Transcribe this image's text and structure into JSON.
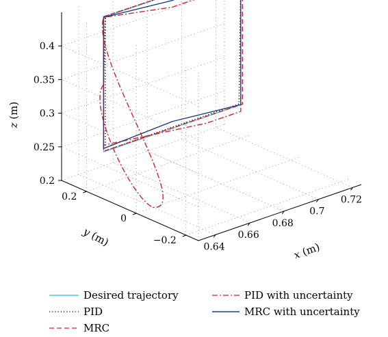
{
  "chart_data": {
    "type": "line",
    "projection": "3d",
    "grid": true,
    "legend_position": "bottom",
    "axes": {
      "x": {
        "label_var": "x",
        "label_unit": "(m)",
        "range": [
          0.63,
          0.725
        ],
        "ticks": [
          0.64,
          0.66,
          0.68,
          0.7,
          0.72
        ],
        "tick_labels": [
          "0.64",
          "0.66",
          "0.68",
          "0.7",
          "0.72"
        ]
      },
      "y": {
        "label_var": "y",
        "label_unit": "(m)",
        "range": [
          -0.25,
          0.3
        ],
        "ticks": [
          -0.2,
          0,
          0.2
        ],
        "tick_labels": [
          "−0.2",
          "0",
          "0.2"
        ]
      },
      "z": {
        "label_var": "z",
        "label_unit": "(m)",
        "range": [
          0.2,
          0.45
        ],
        "ticks": [
          0.2,
          0.25,
          0.3,
          0.35,
          0.4
        ],
        "tick_labels": [
          "0.2",
          "0.25",
          "0.3",
          "0.35",
          "0.4"
        ]
      }
    },
    "series": [
      {
        "name": "Desired trajectory",
        "color": "#4fc3e8",
        "dash": "solid",
        "points": [
          [
            0.64,
            0.2,
            0.35
          ],
          [
            0.64,
            0.2,
            0.45
          ],
          [
            0.72,
            0.2,
            0.45
          ],
          [
            0.72,
            0.2,
            0.25
          ],
          [
            0.64,
            0.2,
            0.25
          ],
          [
            0.64,
            0.2,
            0.45
          ]
        ]
      },
      {
        "name": "PID",
        "color": "#000000",
        "dash": "dotted",
        "points": [
          [
            0.64,
            0.2,
            0.35
          ],
          [
            0.641,
            0.2,
            0.451
          ],
          [
            0.72,
            0.2,
            0.449
          ],
          [
            0.719,
            0.2,
            0.252
          ],
          [
            0.641,
            0.2,
            0.251
          ],
          [
            0.641,
            0.2,
            0.449
          ]
        ]
      },
      {
        "name": "MRC",
        "color": "#d8202a",
        "dash": "dashed",
        "points": [
          [
            0.64,
            0.2,
            0.35
          ],
          [
            0.64,
            0.2,
            0.451
          ],
          [
            0.721,
            0.2,
            0.449
          ],
          [
            0.721,
            0.2,
            0.25
          ],
          [
            0.64,
            0.2,
            0.251
          ],
          [
            0.64,
            0.2,
            0.45
          ]
        ]
      },
      {
        "name": "PID with uncertainty",
        "color": "#d8202a",
        "dash": "dashdot",
        "points": [
          [
            0.64,
            0.2,
            0.35
          ],
          [
            0.64,
            0.0,
            0.2
          ],
          [
            0.64,
            0.2,
            0.45
          ],
          [
            0.68,
            0.2,
            0.43
          ],
          [
            0.72,
            0.2,
            0.43
          ],
          [
            0.72,
            0.2,
            0.24
          ],
          [
            0.7,
            0.2,
            0.24
          ],
          [
            0.64,
            0.2,
            0.26
          ],
          [
            0.64,
            0.2,
            0.44
          ]
        ]
      },
      {
        "name": "MRC with uncertainty",
        "color": "#1f3f8f",
        "dash": "solid",
        "points": [
          [
            0.64,
            0.2,
            0.35
          ],
          [
            0.64,
            0.2,
            0.345
          ],
          [
            0.64,
            0.2,
            0.45
          ],
          [
            0.68,
            0.2,
            0.44
          ],
          [
            0.72,
            0.2,
            0.445
          ],
          [
            0.72,
            0.2,
            0.25
          ],
          [
            0.68,
            0.2,
            0.26
          ],
          [
            0.64,
            0.2,
            0.255
          ],
          [
            0.64,
            0.2,
            0.45
          ]
        ]
      }
    ]
  }
}
